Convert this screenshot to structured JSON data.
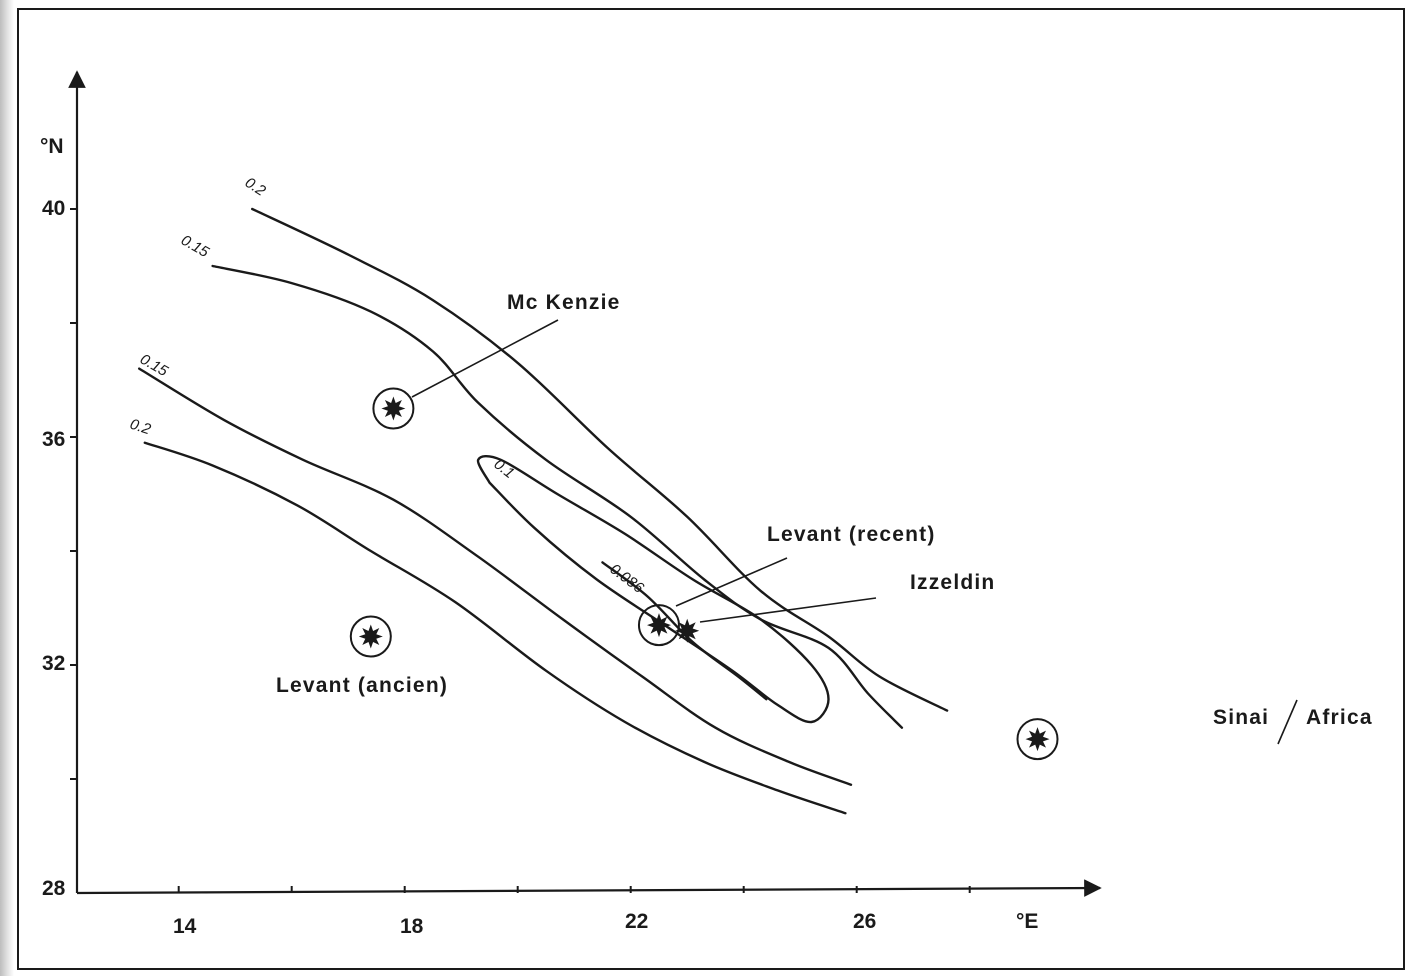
{
  "chart_data": {
    "type": "contour",
    "title": "",
    "x_unit": "°E",
    "y_unit": "°N",
    "xlim": [
      12.2,
      30.2
    ],
    "ylim": [
      28,
      42
    ],
    "x_ticks": [
      14,
      18,
      22,
      26
    ],
    "x_minor_ticks": [
      16,
      20,
      24,
      28
    ],
    "y_ticks": [
      40,
      36,
      32,
      28
    ],
    "y_minor_ticks": [
      38,
      34,
      30
    ],
    "contours": [
      {
        "label": "0.2",
        "points": [
          [
            15.3,
            40.0
          ],
          [
            17.0,
            39.2
          ],
          [
            18.5,
            38.4
          ],
          [
            20.0,
            37.3
          ],
          [
            21.6,
            35.8
          ],
          [
            23.0,
            34.6
          ],
          [
            24.3,
            33.3
          ],
          [
            25.5,
            32.5
          ],
          [
            26.4,
            31.8
          ],
          [
            27.6,
            31.2
          ]
        ]
      },
      {
        "label": "0.15",
        "points": [
          [
            14.6,
            39.0
          ],
          [
            16.0,
            38.7
          ],
          [
            17.4,
            38.2
          ],
          [
            18.5,
            37.5
          ],
          [
            19.3,
            36.6
          ],
          [
            20.5,
            35.6
          ],
          [
            22.0,
            34.6
          ],
          [
            23.3,
            33.5
          ],
          [
            24.3,
            32.8
          ],
          [
            25.5,
            32.3
          ],
          [
            26.2,
            31.5
          ],
          [
            26.8,
            30.9
          ]
        ]
      },
      {
        "label": "0.1",
        "points": [
          [
            19.5,
            35.2
          ],
          [
            20.3,
            34.4
          ],
          [
            21.4,
            33.5
          ],
          [
            22.6,
            32.7
          ],
          [
            23.8,
            31.9
          ],
          [
            24.6,
            31.3
          ],
          [
            25.2,
            31.0
          ],
          [
            25.5,
            31.4
          ],
          [
            25.2,
            32.0
          ],
          [
            24.3,
            32.8
          ],
          [
            23.1,
            33.5
          ],
          [
            21.9,
            34.3
          ],
          [
            20.7,
            35.0
          ],
          [
            19.7,
            35.6
          ],
          [
            19.3,
            35.6
          ],
          [
            19.5,
            35.2
          ]
        ]
      },
      {
        "label": "0.086",
        "points": [
          [
            21.5,
            33.8
          ],
          [
            22.3,
            33.2
          ],
          [
            23.1,
            32.4
          ],
          [
            23.9,
            31.8
          ],
          [
            24.4,
            31.4
          ]
        ]
      },
      {
        "label": "0.15",
        "points": [
          [
            13.3,
            37.2
          ],
          [
            14.8,
            36.3
          ],
          [
            16.2,
            35.6
          ],
          [
            17.8,
            34.9
          ],
          [
            19.3,
            33.9
          ],
          [
            20.8,
            32.8
          ],
          [
            22.2,
            31.8
          ],
          [
            23.5,
            30.9
          ],
          [
            24.8,
            30.3
          ],
          [
            25.9,
            29.9
          ]
        ]
      },
      {
        "label": "0.2",
        "points": [
          [
            13.4,
            35.9
          ],
          [
            14.6,
            35.5
          ],
          [
            16.1,
            34.8
          ],
          [
            17.4,
            34.0
          ],
          [
            18.9,
            33.1
          ],
          [
            20.5,
            31.9
          ],
          [
            21.9,
            31.0
          ],
          [
            23.3,
            30.3
          ],
          [
            24.6,
            29.8
          ],
          [
            25.8,
            29.4
          ]
        ]
      }
    ],
    "sites": [
      {
        "name": "Mc Kenzie",
        "lon": 17.8,
        "lat": 36.5,
        "circled": true
      },
      {
        "name": "Levant (recent)",
        "lon": 22.5,
        "lat": 32.7,
        "circled": true
      },
      {
        "name": "Izzeldin",
        "lon": 23.0,
        "lat": 32.6,
        "circled": false
      },
      {
        "name": "Levant (ancien)",
        "lon": 17.4,
        "lat": 32.5,
        "circled": true
      },
      {
        "name": "Sinai / Africa",
        "lon": 29.2,
        "lat": 30.7,
        "circled": true
      }
    ],
    "grid": false,
    "legend": "none"
  },
  "labels": {
    "y_unit": "°N",
    "x_unit": "°E",
    "x_ticks": [
      "14",
      "18",
      "22",
      "26"
    ],
    "y_ticks": [
      "40",
      "36",
      "32",
      "28"
    ],
    "contour_labels": [
      "0.2",
      "0.15",
      "0.1",
      "0.086",
      "0.15",
      "0.2"
    ],
    "site_mckenzie": "Mc  Kenzie",
    "site_levant_recent": "Levant (recent)",
    "site_izzeldin": "Izzeldin",
    "site_levant_ancien": "Levant (ancien)",
    "site_sinai_a": "Sinai",
    "site_sinai_b": "Africa"
  },
  "colors": {
    "ink": "#1a1a1a",
    "paper": "#ffffff"
  }
}
